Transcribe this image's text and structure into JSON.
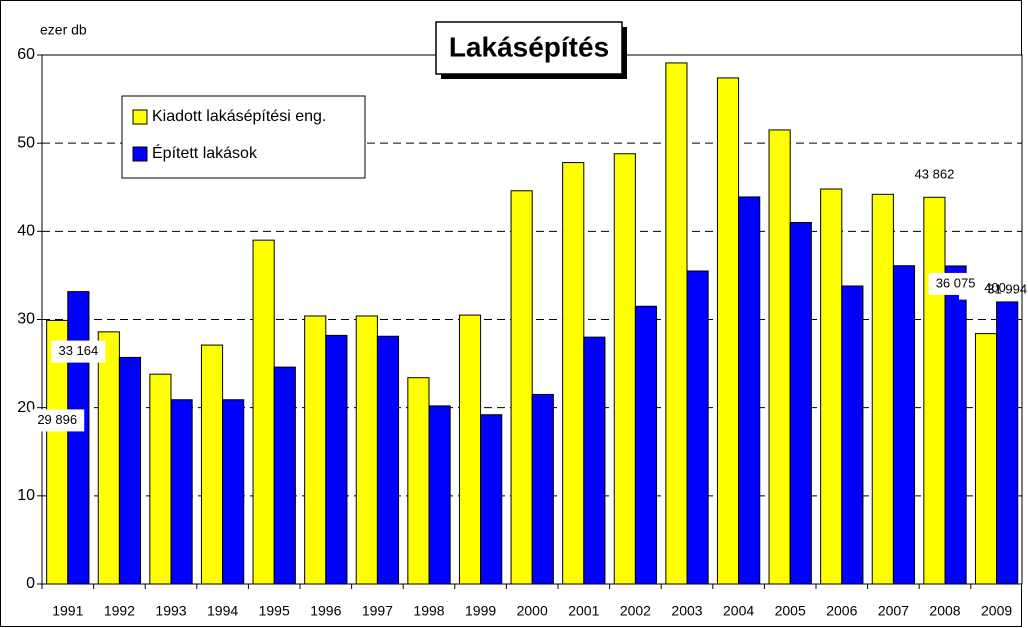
{
  "chart_data": {
    "type": "bar",
    "title": "Lakásépítés",
    "y_label": "ezer db",
    "categories": [
      "1991",
      "1992",
      "1993",
      "1994",
      "1995",
      "1996",
      "1997",
      "1998",
      "1999",
      "2000",
      "2001",
      "2002",
      "2003",
      "2004",
      "2005",
      "2006",
      "2007",
      "2008",
      "2009"
    ],
    "series": [
      {
        "name": "Kiadott lakásépítési eng.",
        "color": "#ffff00",
        "values": [
          29.896,
          28.6,
          23.8,
          27.1,
          39.0,
          30.4,
          30.4,
          23.4,
          30.5,
          44.6,
          47.8,
          48.8,
          59.1,
          57.4,
          51.5,
          44.8,
          44.2,
          43.862,
          28.4
        ],
        "value_labels": [
          "29 896",
          null,
          null,
          null,
          null,
          null,
          null,
          null,
          null,
          null,
          null,
          null,
          null,
          null,
          null,
          null,
          null,
          "43 862",
          "28 400"
        ]
      },
      {
        "name": "Épített lakások",
        "color": "#0000ff",
        "values": [
          33.164,
          25.7,
          20.9,
          20.9,
          24.6,
          28.2,
          28.1,
          20.2,
          19.2,
          21.5,
          28.0,
          31.5,
          35.5,
          43.9,
          41.0,
          33.8,
          36.1,
          36.075,
          31.994
        ],
        "value_labels": [
          "33 164",
          null,
          null,
          null,
          null,
          null,
          null,
          null,
          null,
          null,
          null,
          null,
          null,
          null,
          null,
          null,
          null,
          "36 075",
          "31 994"
        ]
      }
    ],
    "ylim": [
      0,
      60
    ],
    "yticks": [
      0,
      10,
      20,
      30,
      40,
      50,
      60
    ],
    "grid": true
  }
}
